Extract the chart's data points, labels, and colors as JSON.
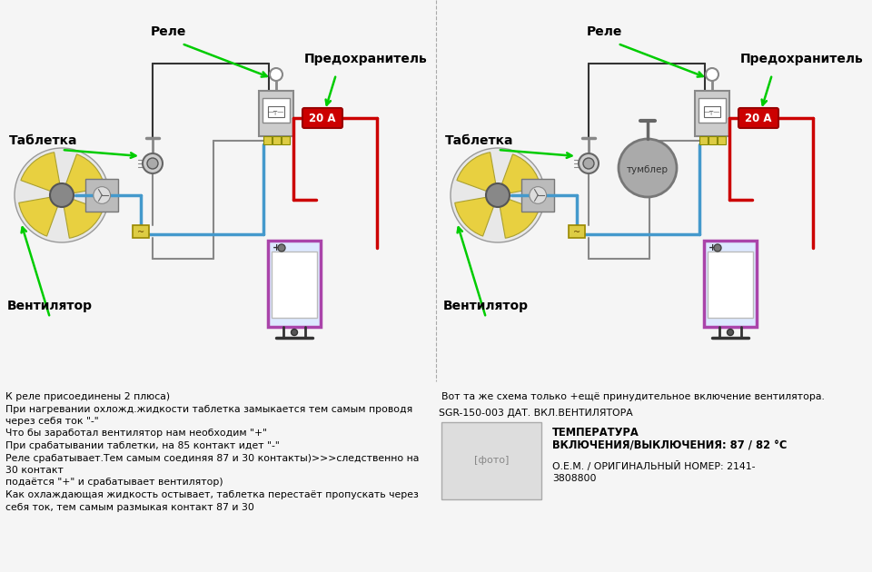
{
  "bg_color": "#f5f5f5",
  "arrow_color": "#00cc00",
  "wire_red": "#cc0000",
  "wire_blue": "#4499cc",
  "wire_black": "#333333",
  "wire_gray": "#888888",
  "fuse_color": "#cc0000",
  "battery_border": "#aa44aa",
  "relay_yellow": "#ddcc44",
  "relay_gray": "#cccccc",
  "fontsize_labels": 10,
  "fontsize_body": 7.8,
  "diagram1": {
    "label_tablet": "Таблетка",
    "label_rele": "Реле",
    "label_predohr": "Предохранитель",
    "label_ventil": "Вентилятор",
    "fuse_text": "20 А"
  },
  "diagram2": {
    "label_tablet": "Таблетка",
    "label_rele": "Реле",
    "label_predohr": "Предохранитель",
    "label_ventil": "Вентилятор",
    "label_tumbler": "тумблер",
    "fuse_text": "20 А"
  },
  "bottom_left_text": [
    "К реле присоединены 2 плюса)",
    "При нагревании охложд.жидкости таблетка замыкается тем самым проводя",
    "через себя ток \"-\"",
    "Что бы заработал вентилятор нам необходим \"+\"",
    "При срабатывании таблетки, на 85 контакт идет \"-\"",
    "Реле срабатывает.Тем самым соединяя 87 и 30 контакты)>>>следственно на",
    "30 контакт",
    "подаётся \"+\" и срабатывает вентилятор)",
    "Как охлаждающая жидкость остывает, таблетка перестаёт пропускать через",
    "себя ток, тем самым размыкая контакт 87 и 30"
  ],
  "bottom_right_lines": [
    "Вот та же схема только +ещё принудительное включение вентилятора.",
    "SGR-150-003 ДАТ. ВКЛ.ВЕНТИЛЯТОРА",
    "ТЕМПЕРАТУРА",
    "ВКЛЮЧЕНИЯ/ВЫКЛЮЧЕНИЯ: 87 / 82 °C",
    "О.Е.М. / ОРИГИНАЛЬНЫЙ НОМЕР: 2141-",
    "3808800"
  ]
}
